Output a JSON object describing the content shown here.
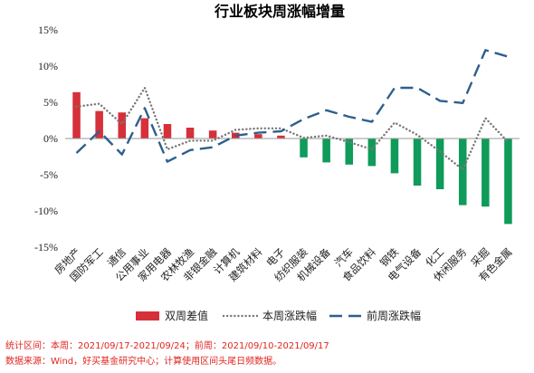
{
  "chart_data": {
    "type": "bar",
    "title": "行业板块周涨幅增量",
    "categories": [
      "房地产",
      "国防军工",
      "通信",
      "公用事业",
      "家用电器",
      "农林牧渔",
      "非银金融",
      "计算机",
      "建筑材料",
      "电子",
      "纺织服装",
      "机械设备",
      "汽车",
      "食品饮料",
      "钢铁",
      "电气设备",
      "化工",
      "休闲服务",
      "采掘",
      "有色金属"
    ],
    "yticks": [
      "15%",
      "10%",
      "5%",
      "0%",
      "-5%",
      "-10%",
      "-15%"
    ],
    "ylim": [
      -15,
      15
    ],
    "series": [
      {
        "name": "双周差值",
        "kind": "bar",
        "color": "#d6303a",
        "color_negative": "#0f9b5a",
        "values": [
          6.4,
          3.8,
          3.6,
          2.8,
          2.0,
          1.5,
          1.1,
          0.8,
          0.6,
          0.4,
          -2.6,
          -3.3,
          -3.6,
          -3.8,
          -4.8,
          -6.5,
          -7.0,
          -9.2,
          -9.4,
          -11.8
        ]
      },
      {
        "name": "本周涨跌幅",
        "kind": "line",
        "style": "dotted",
        "color": "#777777",
        "values": [
          4.4,
          4.8,
          2.0,
          7.0,
          -1.5,
          -0.3,
          -0.3,
          1.2,
          1.4,
          1.4,
          0.1,
          0.4,
          -0.5,
          -1.5,
          2.2,
          0.5,
          -1.8,
          -4.3,
          2.8,
          -0.5
        ]
      },
      {
        "name": "前周涨跌幅",
        "kind": "line",
        "style": "dashed",
        "color": "#2e5f8f",
        "values": [
          -2.0,
          1.0,
          -2.2,
          4.2,
          -3.2,
          -1.6,
          -1.2,
          0.4,
          0.8,
          1.0,
          2.7,
          3.9,
          3.0,
          2.3,
          7.0,
          7.0,
          5.2,
          4.9,
          12.2,
          11.3
        ]
      }
    ],
    "legend_position": "bottom",
    "grid": false
  },
  "footer": {
    "period": "统计区间：本周：2021/09/17-2021/09/24；前周：2021/09/10-2021/09/17",
    "source": "数据来源：Wind，好买基金研究中心；计算使用区间头尾日频数据。"
  }
}
